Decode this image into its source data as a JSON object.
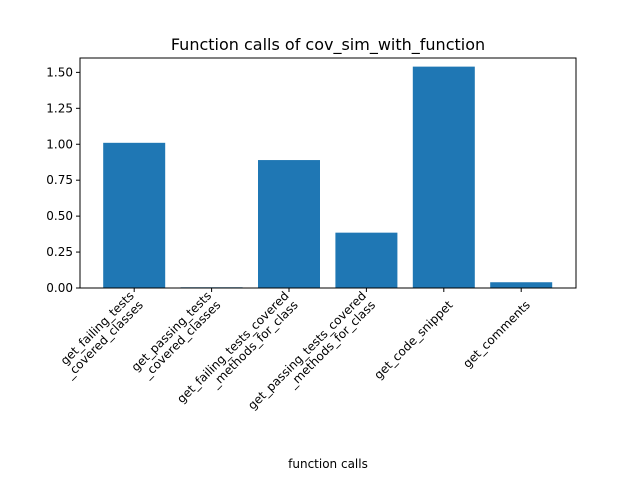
{
  "chart_data": {
    "type": "bar",
    "title": "Function calls of cov_sim_with_function",
    "xlabel": "function calls",
    "ylabel": "",
    "ylim": [
      0,
      1.6
    ],
    "yticks": [
      "0.00",
      "0.25",
      "0.50",
      "0.75",
      "1.00",
      "1.25",
      "1.50"
    ],
    "ytick_values": [
      0,
      0.25,
      0.5,
      0.75,
      1.0,
      1.25,
      1.5
    ],
    "categories": [
      [
        "get_failing_tests",
        "_covered_classes"
      ],
      [
        "get_passing_tests",
        "_covered_classes"
      ],
      [
        "get_failing_tests_covered",
        "_methods_for_class"
      ],
      [
        "get_passing_tests_covered",
        "_methods_for_class"
      ],
      [
        "get_code_snippet"
      ],
      [
        "get_comments"
      ]
    ],
    "values": [
      1.01,
      0.005,
      0.89,
      0.385,
      1.54,
      0.04
    ],
    "bar_color": "#1f77b4",
    "grid": false
  }
}
